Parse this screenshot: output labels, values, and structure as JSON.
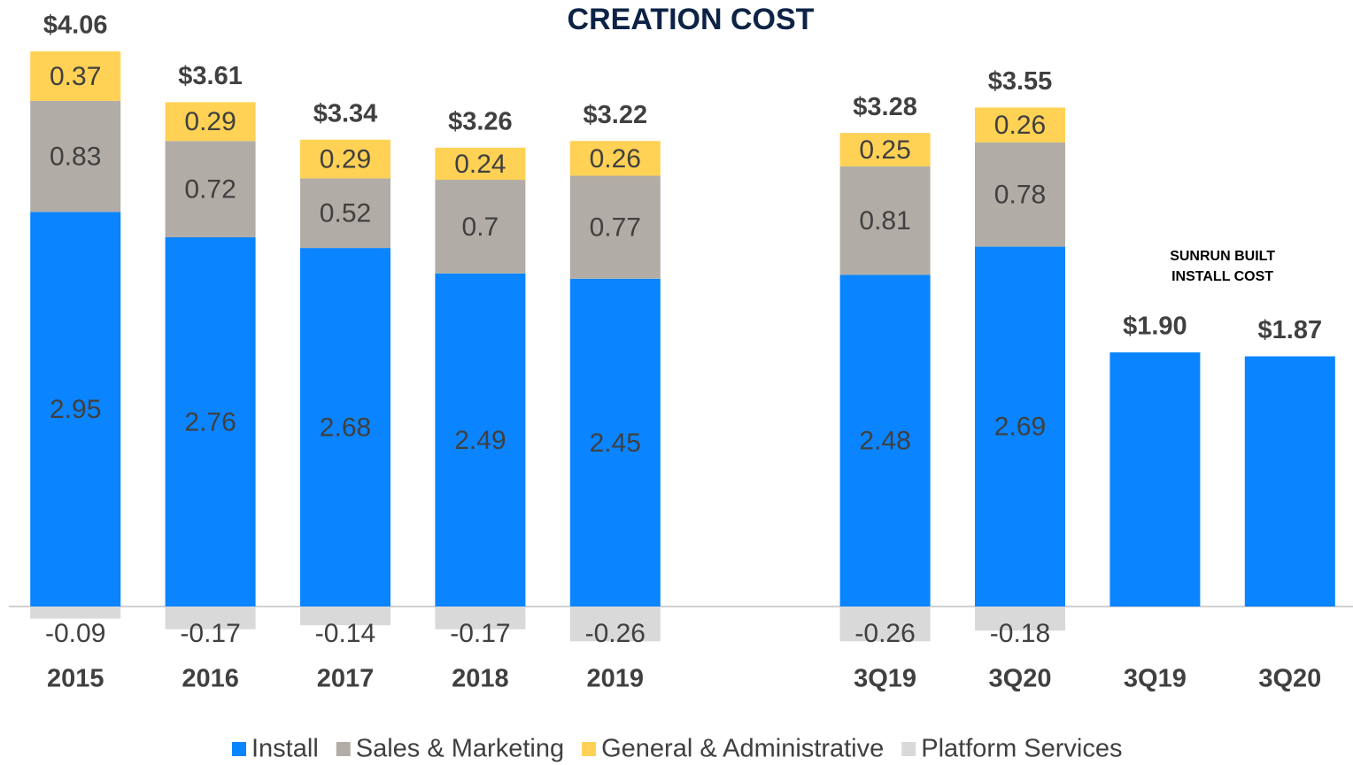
{
  "chart_data": {
    "type": "stacked_bar",
    "title": "CREATION COST",
    "categories": [
      "2015",
      "2016",
      "2017",
      "2018",
      "2019",
      null,
      "3Q19",
      "3Q20",
      "3Q19",
      "3Q20"
    ],
    "series": [
      {
        "name": "Install",
        "color": "#0a84ff",
        "values": [
          2.95,
          2.76,
          2.68,
          2.49,
          2.45,
          null,
          2.48,
          2.69,
          1.9,
          1.87
        ]
      },
      {
        "name": "Sales & Marketing",
        "color": "#b1ada6",
        "values": [
          0.83,
          0.72,
          0.52,
          0.7,
          0.77,
          null,
          0.81,
          0.78,
          null,
          null
        ]
      },
      {
        "name": "General & Administrative",
        "color": "#ffd155",
        "values": [
          0.37,
          0.29,
          0.29,
          0.24,
          0.26,
          null,
          0.25,
          0.26,
          null,
          null
        ]
      },
      {
        "name": "Platform Services",
        "color": "#d9d9d9",
        "values": [
          -0.09,
          -0.17,
          -0.14,
          -0.17,
          -0.26,
          null,
          -0.26,
          -0.18,
          null,
          null
        ]
      }
    ],
    "totals": {
      "values": [
        4.06,
        3.61,
        3.34,
        3.26,
        3.22,
        null,
        3.28,
        3.55,
        1.9,
        1.87
      ],
      "value_labels": [
        "$4.06",
        "$3.61",
        "$3.34",
        "$3.26",
        "$3.22",
        null,
        "$3.28",
        "$3.55",
        "$1.90",
        "$1.87"
      ]
    },
    "annotation": [
      "SUNRUN BUILT",
      "INSTALL COST"
    ]
  }
}
